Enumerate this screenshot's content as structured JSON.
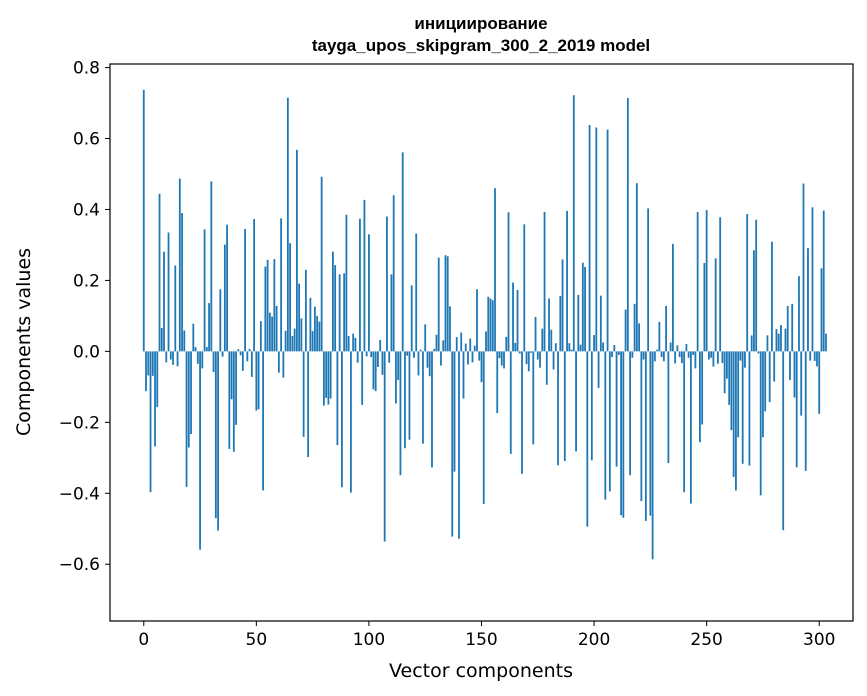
{
  "chart_data": {
    "type": "bar",
    "title": "инициирование",
    "subtitle": "tayga_upos_skipgram_300_2_2019 model",
    "xlabel": "Vector components",
    "ylabel": "Components values",
    "xlim": [
      -15,
      315
    ],
    "ylim": [
      -0.76,
      0.81
    ],
    "xticks": [
      0,
      50,
      100,
      150,
      200,
      250,
      300
    ],
    "yticks": [
      -0.6,
      -0.4,
      -0.2,
      0.0,
      0.2,
      0.4,
      0.6,
      0.8
    ],
    "ytick_labels": [
      "−0.6",
      "−0.4",
      "−0.2",
      "0.0",
      "0.2",
      "0.4",
      "0.6",
      "0.8"
    ],
    "bar_color": "#1f77b4",
    "values": [
      0.737,
      -0.112,
      -0.068,
      -0.397,
      -0.069,
      -0.268,
      -0.157,
      0.444,
      0.066,
      0.281,
      -0.031,
      0.335,
      -0.023,
      -0.038,
      0.242,
      -0.042,
      0.487,
      0.39,
      0.059,
      -0.382,
      -0.271,
      -0.233,
      0.078,
      0.012,
      -0.035,
      -0.559,
      -0.048,
      0.344,
      0.012,
      0.136,
      0.479,
      -0.058,
      -0.47,
      -0.505,
      0.175,
      -0.015,
      0.301,
      0.357,
      -0.275,
      -0.135,
      -0.283,
      -0.207,
      0.006,
      -0.011,
      -0.055,
      0.345,
      -0.028,
      0.007,
      -0.072,
      0.373,
      -0.167,
      -0.163,
      0.085,
      -0.392,
      0.239,
      0.258,
      0.109,
      0.098,
      0.26,
      0.128,
      -0.06,
      0.375,
      -0.074,
      0.058,
      0.715,
      0.305,
      0.043,
      0.064,
      0.568,
      0.191,
      0.093,
      -0.241,
      0.23,
      -0.298,
      0.151,
      0.057,
      0.126,
      0.1,
      0.084,
      0.492,
      -0.153,
      -0.131,
      -0.15,
      -0.133,
      0.281,
      0.243,
      -0.264,
      0.217,
      -0.383,
      0.22,
      0.385,
      0.043,
      -0.398,
      0.05,
      0.038,
      -0.032,
      0.374,
      -0.151,
      0.427,
      -0.014,
      0.33,
      -0.016,
      -0.107,
      -0.112,
      -0.044,
      0.032,
      -0.066,
      -0.536,
      0.38,
      -0.032,
      0.217,
      0.44,
      -0.147,
      -0.081,
      -0.349,
      0.561,
      -0.273,
      -0.012,
      -0.249,
      0.186,
      -0.018,
      0.332,
      -0.068,
      0.005,
      -0.26,
      0.076,
      -0.046,
      -0.07,
      -0.327,
      0.007,
      0.047,
      0.264,
      -0.04,
      0.031,
      0.271,
      0.268,
      0.127,
      -0.522,
      -0.339,
      0.04,
      -0.528,
      0.053,
      -0.133,
      0.022,
      -0.037,
      0.036,
      -0.031,
      0.016,
      0.175,
      -0.026,
      -0.087,
      -0.43,
      0.056,
      0.154,
      0.149,
      0.144,
      0.46,
      -0.174,
      -0.019,
      -0.04,
      -0.048,
      0.041,
      0.392,
      -0.289,
      0.194,
      0.024,
      0.173,
      -0.006,
      -0.345,
      0.358,
      -0.036,
      -0.056,
      -0.004,
      -0.262,
      0.097,
      -0.023,
      -0.046,
      0.064,
      0.393,
      -0.094,
      0.149,
      0.061,
      -0.051,
      0.023,
      -0.321,
      0.156,
      0.259,
      -0.309,
      0.396,
      0.023,
      0.005,
      0.722,
      -0.282,
      0.159,
      0.019,
      0.25,
      0.238,
      -0.494,
      0.638,
      -0.307,
      0.046,
      0.631,
      -0.103,
      0.157,
      0.025,
      -0.418,
      0.625,
      -0.395,
      -0.016,
      0.018,
      -0.325,
      -0.01,
      -0.462,
      -0.469,
      0.118,
      0.714,
      -0.349,
      -0.018,
      0.134,
      0.474,
      0.079,
      -0.422,
      -0.023,
      -0.478,
      0.403,
      -0.463,
      -0.586,
      -0.028,
      0.005,
      0.083,
      -0.016,
      -0.028,
      0.128,
      -0.315,
      0.025,
      0.303,
      -0.034,
      0.017,
      -0.016,
      -0.033,
      -0.397,
      0.021,
      -0.018,
      -0.429,
      -0.01,
      -0.048,
      0.393,
      -0.256,
      -0.206,
      0.249,
      0.398,
      -0.023,
      -0.018,
      -0.043,
      0.262,
      -0.035,
      0.378,
      -0.033,
      -0.118,
      -0.077,
      -0.151,
      -0.222,
      -0.354,
      -0.392,
      -0.242,
      -0.026,
      -0.317,
      -0.046,
      0.387,
      -0.322,
      0.045,
      0.285,
      0.371,
      -0.006,
      -0.406,
      -0.242,
      -0.169,
      0.045,
      -0.143,
      0.309,
      -0.085,
      0.063,
      0.05,
      0.074,
      -0.504,
      0.064,
      0.128,
      -0.081,
      0.134,
      -0.13,
      -0.327,
      0.212,
      -0.181,
      0.473,
      -0.337,
      0.291,
      -0.026,
      0.406,
      -0.027,
      -0.042,
      -0.176,
      0.234,
      0.397,
      0.05
    ]
  }
}
